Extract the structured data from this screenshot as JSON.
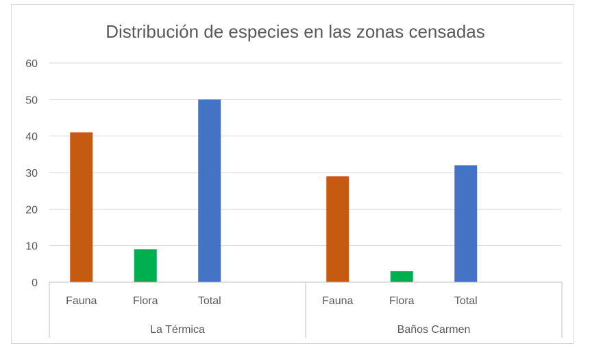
{
  "chart_data": {
    "type": "bar",
    "title": "Distribución de especies en las zonas censadas",
    "xlabel": "",
    "ylabel": "",
    "ylim": [
      0,
      60
    ],
    "yticks": [
      0,
      10,
      20,
      30,
      40,
      50,
      60
    ],
    "grid": true,
    "legend": "none",
    "groups": [
      {
        "name": "La Térmica",
        "bars": [
          {
            "category": "Fauna",
            "value": 41,
            "color": "#c55a11"
          },
          {
            "category": "Flora",
            "value": 9,
            "color": "#00b050"
          },
          {
            "category": "Total",
            "value": 50,
            "color": "#4472c4"
          }
        ]
      },
      {
        "name": "Baños Carmen",
        "bars": [
          {
            "category": "Fauna",
            "value": 29,
            "color": "#c55a11"
          },
          {
            "category": "Flora",
            "value": 3,
            "color": "#00b050"
          },
          {
            "category": "Total",
            "value": 32,
            "color": "#4472c4"
          }
        ]
      }
    ]
  }
}
